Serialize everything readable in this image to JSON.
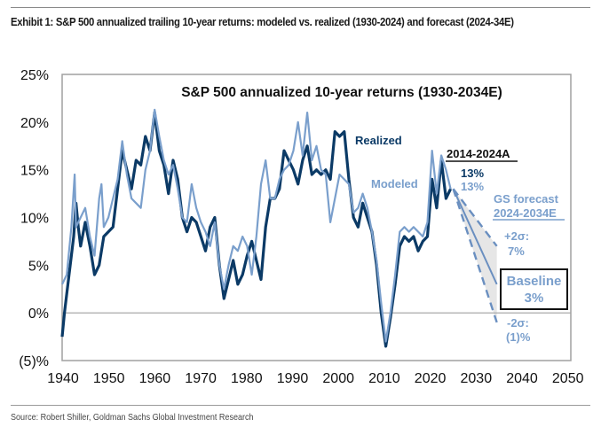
{
  "exhibit_title": "Exhibit 1: S&P 500 annualized trailing 10-year returns: modeled vs. realized (1930-2024) and forecast (2024-34E)",
  "source": "Source: Robert Shiller, Goldman Sachs Global Investment Research",
  "colors": {
    "realized": "#0b3a66",
    "modeled": "#7a9fcc",
    "forecast": "#6a8fc0",
    "band": "#e6e6e6",
    "axis": "#a0a0a0"
  },
  "annotations": {
    "realized_label": "Realized",
    "modeled_label": "Modeled",
    "period_label": "2014-2024A",
    "realized_value": "13%",
    "modeled_value": "13%",
    "forecast_label_1": "GS forecast",
    "forecast_label_2": "2024-2034E",
    "plus2_label": "+2σ:",
    "plus2_value": "7%",
    "baseline_label": "Baseline",
    "baseline_value": "3%",
    "minus2_label": "-2σ:",
    "minus2_value": "(1)%"
  },
  "chart_data": {
    "type": "line",
    "title": "S&P 500 annualized 10-year returns (1930-2034E)",
    "xlabel": "",
    "ylabel": "",
    "xlim": [
      1940,
      2050
    ],
    "ylim": [
      -5,
      25
    ],
    "x_ticks": [
      "1940",
      "1950",
      "1960",
      "1970",
      "1980",
      "1990",
      "2000",
      "2010",
      "2020",
      "2030",
      "2040",
      "2050"
    ],
    "y_ticks": [
      "25%",
      "20%",
      "15%",
      "10%",
      "5%",
      "0%",
      "(5)%"
    ],
    "y_tick_values": [
      25,
      20,
      15,
      10,
      5,
      0,
      -5
    ],
    "gridlines": "zero line only",
    "legend": "inline labels",
    "series": [
      {
        "name": "Realized",
        "x": [
          1940,
          1940.5,
          1941,
          1942,
          1942.5,
          1943,
          1943.5,
          1944,
          1945,
          1946,
          1947,
          1948,
          1949,
          1950,
          1951,
          1952,
          1953,
          1954,
          1955,
          1956,
          1957,
          1958,
          1959,
          1960,
          1961,
          1962,
          1963,
          1964,
          1965,
          1966,
          1967,
          1968,
          1969,
          1970,
          1971,
          1972,
          1973,
          1974,
          1975,
          1976,
          1977,
          1978,
          1979,
          1980,
          1981,
          1982,
          1983,
          1984,
          1985,
          1986,
          1987,
          1988,
          1989,
          1990,
          1991,
          1992,
          1993,
          1994,
          1995,
          1996,
          1997,
          1998,
          1999,
          2000,
          2001,
          2002,
          2003,
          2004,
          2005,
          2006,
          2007,
          2008,
          2009,
          2010,
          2011,
          2012,
          2013,
          2014,
          2015,
          2016,
          2017,
          2018,
          2019,
          2020,
          2021,
          2022,
          2023,
          2024
        ],
        "values": [
          -2.5,
          0,
          2,
          6,
          8,
          11.5,
          9,
          7,
          9.5,
          7,
          4,
          5,
          8,
          8.5,
          9,
          13,
          17,
          15,
          13,
          16,
          15.5,
          18.5,
          17,
          21,
          17,
          15.5,
          12.5,
          16,
          14,
          10,
          8.5,
          10,
          9.5,
          8,
          6.5,
          9,
          10,
          5,
          1.5,
          3.5,
          5.5,
          3,
          4,
          6,
          7.5,
          5.5,
          3.5,
          9,
          12,
          12,
          13,
          17,
          16,
          15,
          13.5,
          16,
          17.5,
          14.5,
          15,
          14.5,
          15,
          14,
          19,
          18.5,
          19,
          14,
          10,
          9,
          11.5,
          10,
          8.5,
          5,
          0,
          -3.5,
          -0.5,
          3,
          7,
          8,
          7.5,
          8,
          6.5,
          7.5,
          8,
          14,
          11,
          16,
          12,
          13
        ]
      },
      {
        "name": "Modeled",
        "x": [
          1940,
          1941,
          1942,
          1942.7,
          1943,
          1944,
          1945,
          1946,
          1947,
          1948,
          1948.5,
          1949,
          1950,
          1951,
          1952,
          1953,
          1954,
          1955,
          1956,
          1957,
          1958,
          1959,
          1960,
          1961,
          1962,
          1963,
          1964,
          1965,
          1966,
          1967,
          1968,
          1969,
          1970,
          1971,
          1972,
          1973,
          1974,
          1975,
          1976,
          1977,
          1978,
          1979,
          1980,
          1981,
          1982,
          1983,
          1984,
          1985,
          1986,
          1987,
          1988,
          1989,
          1990,
          1991,
          1992,
          1993,
          1994,
          1995,
          1996,
          1997,
          1998,
          1999,
          2000,
          2001,
          2002,
          2003,
          2004,
          2005,
          2006,
          2007,
          2008,
          2009,
          2010,
          2011,
          2012,
          2013,
          2014,
          2015,
          2016,
          2017,
          2018,
          2019,
          2020,
          2021,
          2022,
          2023,
          2024
        ],
        "values": [
          3,
          4,
          9,
          14.5,
          9,
          10,
          11,
          8,
          6,
          12,
          13.5,
          9,
          10,
          12,
          14,
          18,
          14.5,
          12,
          11.5,
          11,
          15,
          17,
          21.3,
          18.5,
          16,
          14.5,
          15.5,
          13,
          10,
          9.5,
          13.5,
          11,
          9.5,
          8.5,
          7,
          9.5,
          5,
          2.5,
          5,
          7,
          6.5,
          8,
          7,
          4,
          8,
          13.5,
          16,
          12,
          12,
          14,
          15,
          15.5,
          17,
          20,
          16.5,
          21,
          16,
          17.5,
          15,
          14.5,
          9.5,
          12,
          14.5,
          14,
          13.5,
          10.5,
          11,
          12.5,
          11,
          8.5,
          5.5,
          1,
          -3,
          0,
          4,
          8.5,
          9,
          8.5,
          9,
          8.5,
          8,
          9.5,
          17,
          12.5,
          16.5,
          15,
          13
        ]
      },
      {
        "name": "GS forecast baseline",
        "x": [
          2024,
          2034
        ],
        "values": [
          13,
          3
        ]
      },
      {
        "name": "GS forecast +2σ",
        "x": [
          2024,
          2034
        ],
        "values": [
          13,
          7
        ]
      },
      {
        "name": "GS forecast -2σ",
        "x": [
          2024,
          2034
        ],
        "values": [
          13,
          -1
        ]
      }
    ]
  }
}
